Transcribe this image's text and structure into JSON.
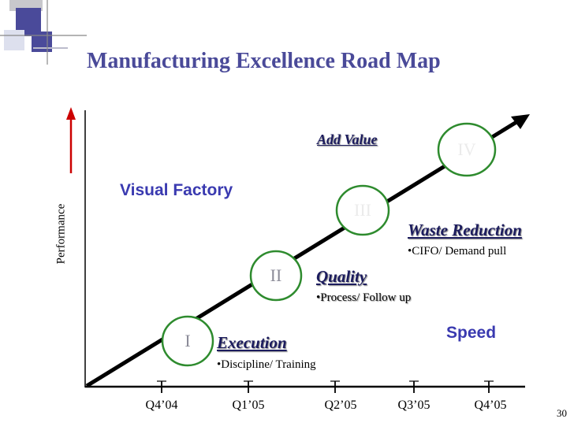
{
  "title": "Manufacturing Excellence Road Map",
  "slide_number": "30",
  "y_axis_label": "Performance",
  "x_ticks": [
    "Q4’04",
    "Q1’05",
    "Q2’05",
    "Q3’05",
    "Q4’05"
  ],
  "stages": [
    {
      "numeral": "I",
      "color": "#8b8b98"
    },
    {
      "numeral": "II",
      "color": "#8b8b98"
    },
    {
      "numeral": "III",
      "color": "#ebebeb"
    },
    {
      "numeral": "IV",
      "color": "#ebebeb"
    }
  ],
  "annotations": {
    "execution": {
      "heading": "Execution",
      "bullet": "•Discipline/ Training"
    },
    "quality": {
      "heading": "Quality",
      "bullet": "•Process/ Follow up"
    },
    "waste_reduction": {
      "heading": "Waste Reduction",
      "bullet": "•CIFO/ Demand pull"
    },
    "add_value": "Add Value",
    "visual_factory": "Visual Factory",
    "speed": "Speed"
  },
  "colors": {
    "title": "#4a4a99",
    "heading": "#1c1c5e",
    "blue_label": "#3a3ab0",
    "arrow_red": "#cc0000",
    "circle_fill": "#ffffff",
    "circle_stroke": "#2e8b2e"
  }
}
